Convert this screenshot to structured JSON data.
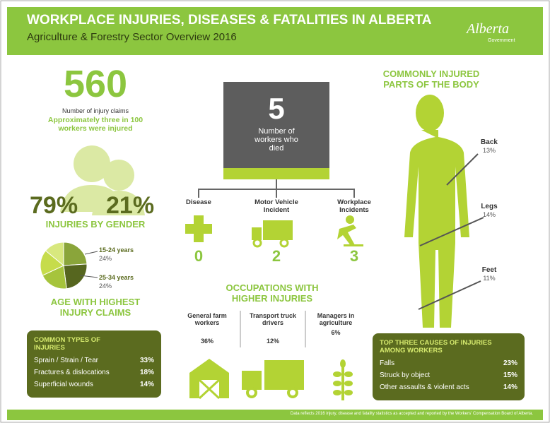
{
  "header": {
    "title": "WORKPLACE INJURIES, DISEASES & FATALITIES IN ALBERTA",
    "subtitle": "Agriculture & Forestry Sector Overview 2016",
    "logo": "Alberta",
    "logo_sub": "Government"
  },
  "claims": {
    "number": "560",
    "label": "Number of injury claims",
    "note": "Approximately three in 100 workers were injured"
  },
  "gender": {
    "male": "79%",
    "female": "21%",
    "title": "INJURIES BY GENDER"
  },
  "chart_data": {
    "type": "pie",
    "title": "AGE WITH HIGHEST INJURY CLAIMS",
    "categories": [
      "15-24 years",
      "25-34 years",
      null,
      null,
      null
    ],
    "values": [
      24,
      24,
      20,
      18,
      14
    ],
    "value_labels": [
      "24%",
      "24%",
      null,
      null,
      null
    ],
    "colors": [
      "#8aa53a",
      "#56661f",
      "#a6c43c",
      "#c6dc4b",
      "#d8e87e"
    ]
  },
  "fatalities": {
    "number": "5",
    "label": "Number of workers who died",
    "causes": [
      {
        "label": "Disease",
        "count": "0"
      },
      {
        "label": "Motor Vehicle Incident",
        "count": "2"
      },
      {
        "label": "Workplace Incidents",
        "count": "3"
      }
    ]
  },
  "occupations": {
    "title": "OCCUPATIONS WITH HIGHER INJURIES",
    "items": [
      {
        "label": "General farm workers",
        "value": "36%"
      },
      {
        "label": "Transport truck drivers",
        "value": "12%"
      },
      {
        "label": "Managers in agriculture",
        "value": "6%"
      }
    ]
  },
  "injury_types": {
    "title": "COMMON TYPES OF INJURIES",
    "rows": [
      [
        "Sprain / Strain / Tear",
        "33%"
      ],
      [
        "Fractures & dislocations",
        "18%"
      ],
      [
        "Superficial wounds",
        "14%"
      ]
    ]
  },
  "body_parts": {
    "title": "COMMONLY INJURED PARTS OF THE BODY",
    "items": [
      {
        "label": "Back",
        "value": "13%"
      },
      {
        "label": "Legs",
        "value": "14%"
      },
      {
        "label": "Feet",
        "value": "11%"
      }
    ]
  },
  "causes": {
    "title": "TOP THREE CAUSES OF INJURIES AMONG WORKERS",
    "rows": [
      [
        "Falls",
        "23%"
      ],
      [
        "Struck by object",
        "15%"
      ],
      [
        "Other assaults & violent acts",
        "14%"
      ]
    ]
  },
  "footer": "Data reflects 2016 injury, disease and fatality statistics as accepted and reported by the Workers' Compensation Board of Alberta."
}
